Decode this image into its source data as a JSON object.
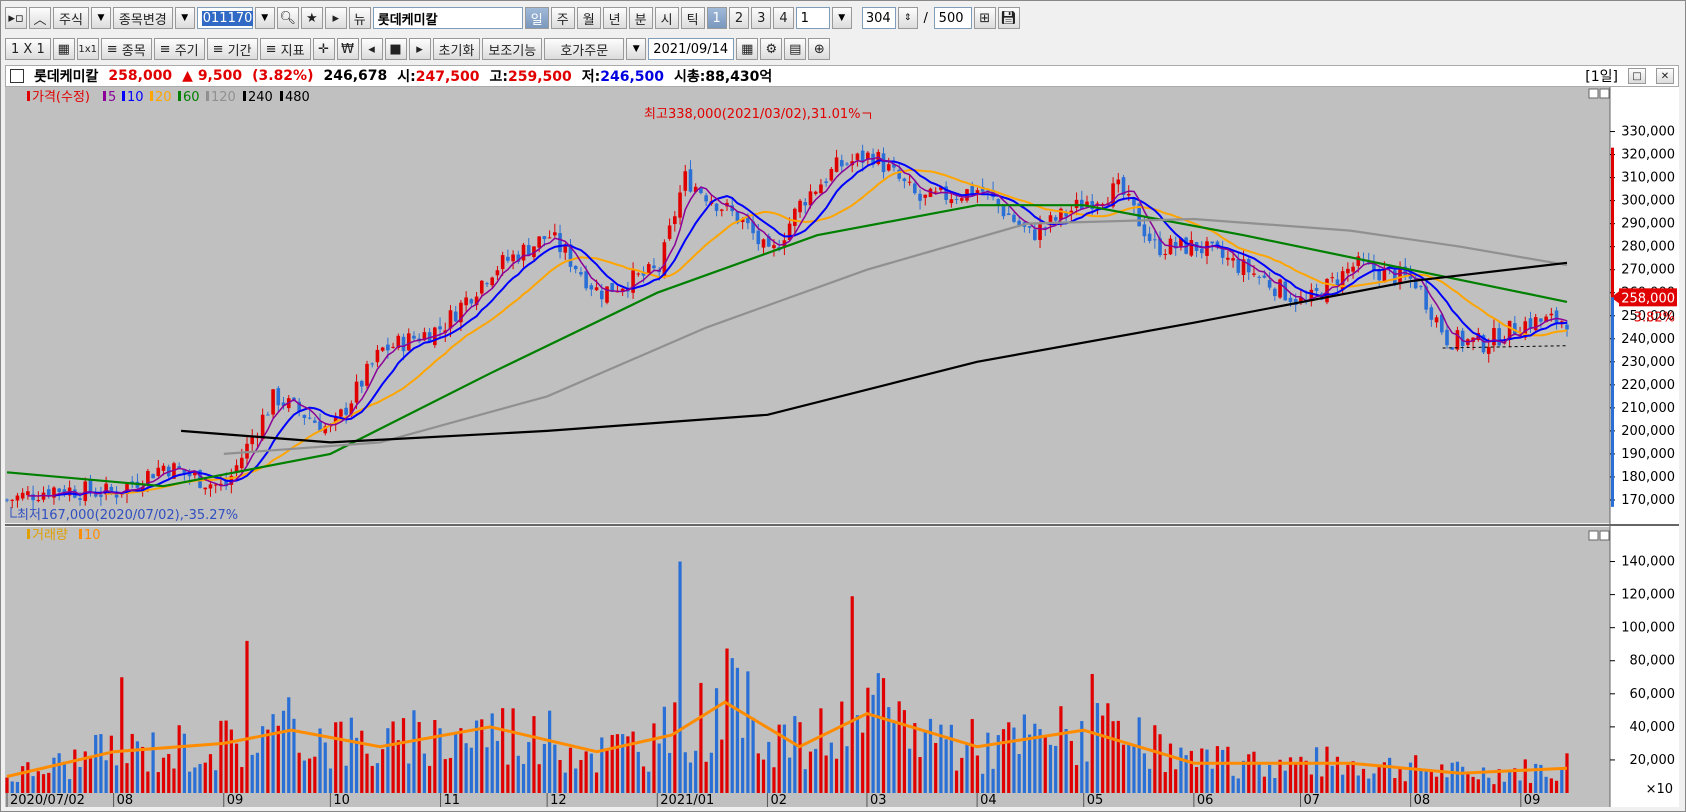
{
  "toolbar1": {
    "market": "주식",
    "change_label": "종목변경",
    "code": "011170",
    "stock_name": "롯데케미칼",
    "period_buttons": [
      "일",
      "주",
      "월",
      "년",
      "분",
      "시",
      "틱"
    ],
    "num_buttons": [
      "1",
      "2",
      "3",
      "4"
    ],
    "unit_value": "1",
    "count_value": "304",
    "total_count": "500"
  },
  "toolbar2": {
    "layout_label": "1 X 1",
    "grid_label": "1x1",
    "items": [
      "종목",
      "주기",
      "기간",
      "지표"
    ],
    "init_label": "초기화",
    "aux_label": "보조기능",
    "order_label": "호가주문",
    "date_value": "2021/09/14"
  },
  "info": {
    "name": "롯데케미칼",
    "price": "258,000",
    "change": "▲ 9,500",
    "change_pct": "(3.82%)",
    "volume": "246,678",
    "open_label": "시:",
    "open": "247,500",
    "high_label": "고:",
    "high": "259,500",
    "low_label": "저:",
    "low": "246,500",
    "cap_label": "시총:",
    "cap": "88,430억",
    "period": "[1일]"
  },
  "colors": {
    "up": "#e00000",
    "down": "#2a6fd6",
    "ma5": "#8a0099",
    "ma10": "#0000ff",
    "ma20": "#ffa500",
    "ma60": "#008000",
    "ma120": "#909090",
    "ma240": "#000000",
    "vol_ma10": "#ff8c00",
    "panel_bg": "#c0c0c0"
  },
  "chart_data": [
    {
      "type": "line",
      "title": "",
      "legend": [
        "가격(수정)",
        "5",
        "10",
        "20",
        "60",
        "120",
        "240",
        "480"
      ],
      "ylim": [
        160000,
        345000
      ],
      "y_ticks": [
        170000,
        180000,
        190000,
        200000,
        210000,
        220000,
        230000,
        240000,
        250000,
        260000,
        270000,
        280000,
        290000,
        300000,
        310000,
        320000,
        330000
      ],
      "x_labels": [
        "2020/07/02",
        "08",
        "09",
        "10",
        "11",
        "12",
        "2021/01",
        "02",
        "03",
        "04",
        "05",
        "06",
        "07",
        "08",
        "09"
      ],
      "series": [
        {
          "name": "가격(수정)",
          "x": [
            "2020/07/02",
            "2020/07/15",
            "2020/08/01",
            "2020/08/15",
            "2020/09/01",
            "2020/09/15",
            "2020/10/01",
            "2020/10/15",
            "2020/11/01",
            "2020/11/15",
            "2020/12/01",
            "2020/12/15",
            "2021/01/01",
            "2021/01/08",
            "2021/01/25",
            "2021/02/01",
            "2021/02/10",
            "2021/02/20",
            "2021/03/02",
            "2021/03/15",
            "2021/04/01",
            "2021/04/15",
            "2021/05/01",
            "2021/05/10",
            "2021/05/20",
            "2021/06/01",
            "2021/06/15",
            "2021/07/01",
            "2021/07/15",
            "2021/08/01",
            "2021/08/10",
            "2021/08/20",
            "2021/09/01",
            "2021/09/13",
            "2021/09/14"
          ],
          "values": [
            170000,
            175000,
            173000,
            185000,
            175000,
            215000,
            200000,
            235000,
            245000,
            270000,
            285000,
            260000,
            270000,
            310000,
            290000,
            275000,
            300000,
            315000,
            320000,
            300000,
            305000,
            285000,
            300000,
            305000,
            280000,
            280000,
            270000,
            255000,
            272000,
            265000,
            240000,
            238000,
            247000,
            248500,
            258000
          ]
        },
        {
          "name": "60",
          "x": [
            "2020/07/02",
            "2020/08/15",
            "2020/10/01",
            "2020/11/15",
            "2021/01/01",
            "2021/02/15",
            "2021/04/01",
            "2021/05/01",
            "2021/06/15",
            "2021/08/01",
            "2021/09/14"
          ],
          "values": [
            182000,
            176000,
            190000,
            225000,
            260000,
            285000,
            298000,
            298000,
            285000,
            270000,
            256000
          ]
        },
        {
          "name": "120",
          "x": [
            "2020/09/01",
            "2020/10/15",
            "2020/12/01",
            "2021/01/15",
            "2021/03/01",
            "2021/04/15",
            "2021/06/01",
            "2021/07/15",
            "2021/08/15",
            "2021/09/14"
          ],
          "values": [
            190000,
            195000,
            215000,
            245000,
            270000,
            290000,
            292000,
            287000,
            280000,
            272000
          ]
        },
        {
          "name": "240",
          "x": [
            "2020/08/20",
            "2020/10/01",
            "2020/12/01",
            "2021/02/01",
            "2021/04/01",
            "2021/06/01",
            "2021/08/01",
            "2021/09/14"
          ],
          "values": [
            200000,
            195000,
            200000,
            207000,
            230000,
            247000,
            265000,
            273000
          ]
        }
      ],
      "annotations": {
        "high": "최고338,000(2021/03/02),31.01%",
        "low": "최저167,000(2020/07/02),-35.27%",
        "last_price": "258,000",
        "last_pct": "3.82%"
      }
    },
    {
      "type": "bar",
      "title": "",
      "legend": [
        "거래량",
        "10"
      ],
      "ylim": [
        0,
        150000
      ],
      "y_ticks": [
        20000,
        40000,
        60000,
        80000,
        100000,
        120000,
        140000
      ],
      "unit_label": "×10",
      "peaks": [
        {
          "x": "2020/08/03",
          "value": 70000
        },
        {
          "x": "2020/09/07",
          "value": 92000
        },
        {
          "x": "2021/01/08",
          "value": 140000
        },
        {
          "x": "2021/02/25",
          "value": 119000
        },
        {
          "x": "2021/05/03",
          "value": 72000
        },
        {
          "x": "2021/09/14",
          "value": 24000
        }
      ],
      "series": [
        {
          "name": "10",
          "x": [
            "2020/07/02",
            "2020/08/01",
            "2020/09/01",
            "2020/09/20",
            "2020/10/15",
            "2020/11/15",
            "2020/12/15",
            "2021/01/05",
            "2021/01/20",
            "2021/02/10",
            "2021/03/01",
            "2021/04/01",
            "2021/05/01",
            "2021/06/01",
            "2021/07/15",
            "2021/08/15",
            "2021/09/14"
          ],
          "values": [
            10000,
            25000,
            30000,
            38000,
            28000,
            40000,
            25000,
            35000,
            55000,
            28000,
            48000,
            28000,
            38000,
            18000,
            18000,
            12000,
            15000
          ]
        }
      ]
    }
  ]
}
